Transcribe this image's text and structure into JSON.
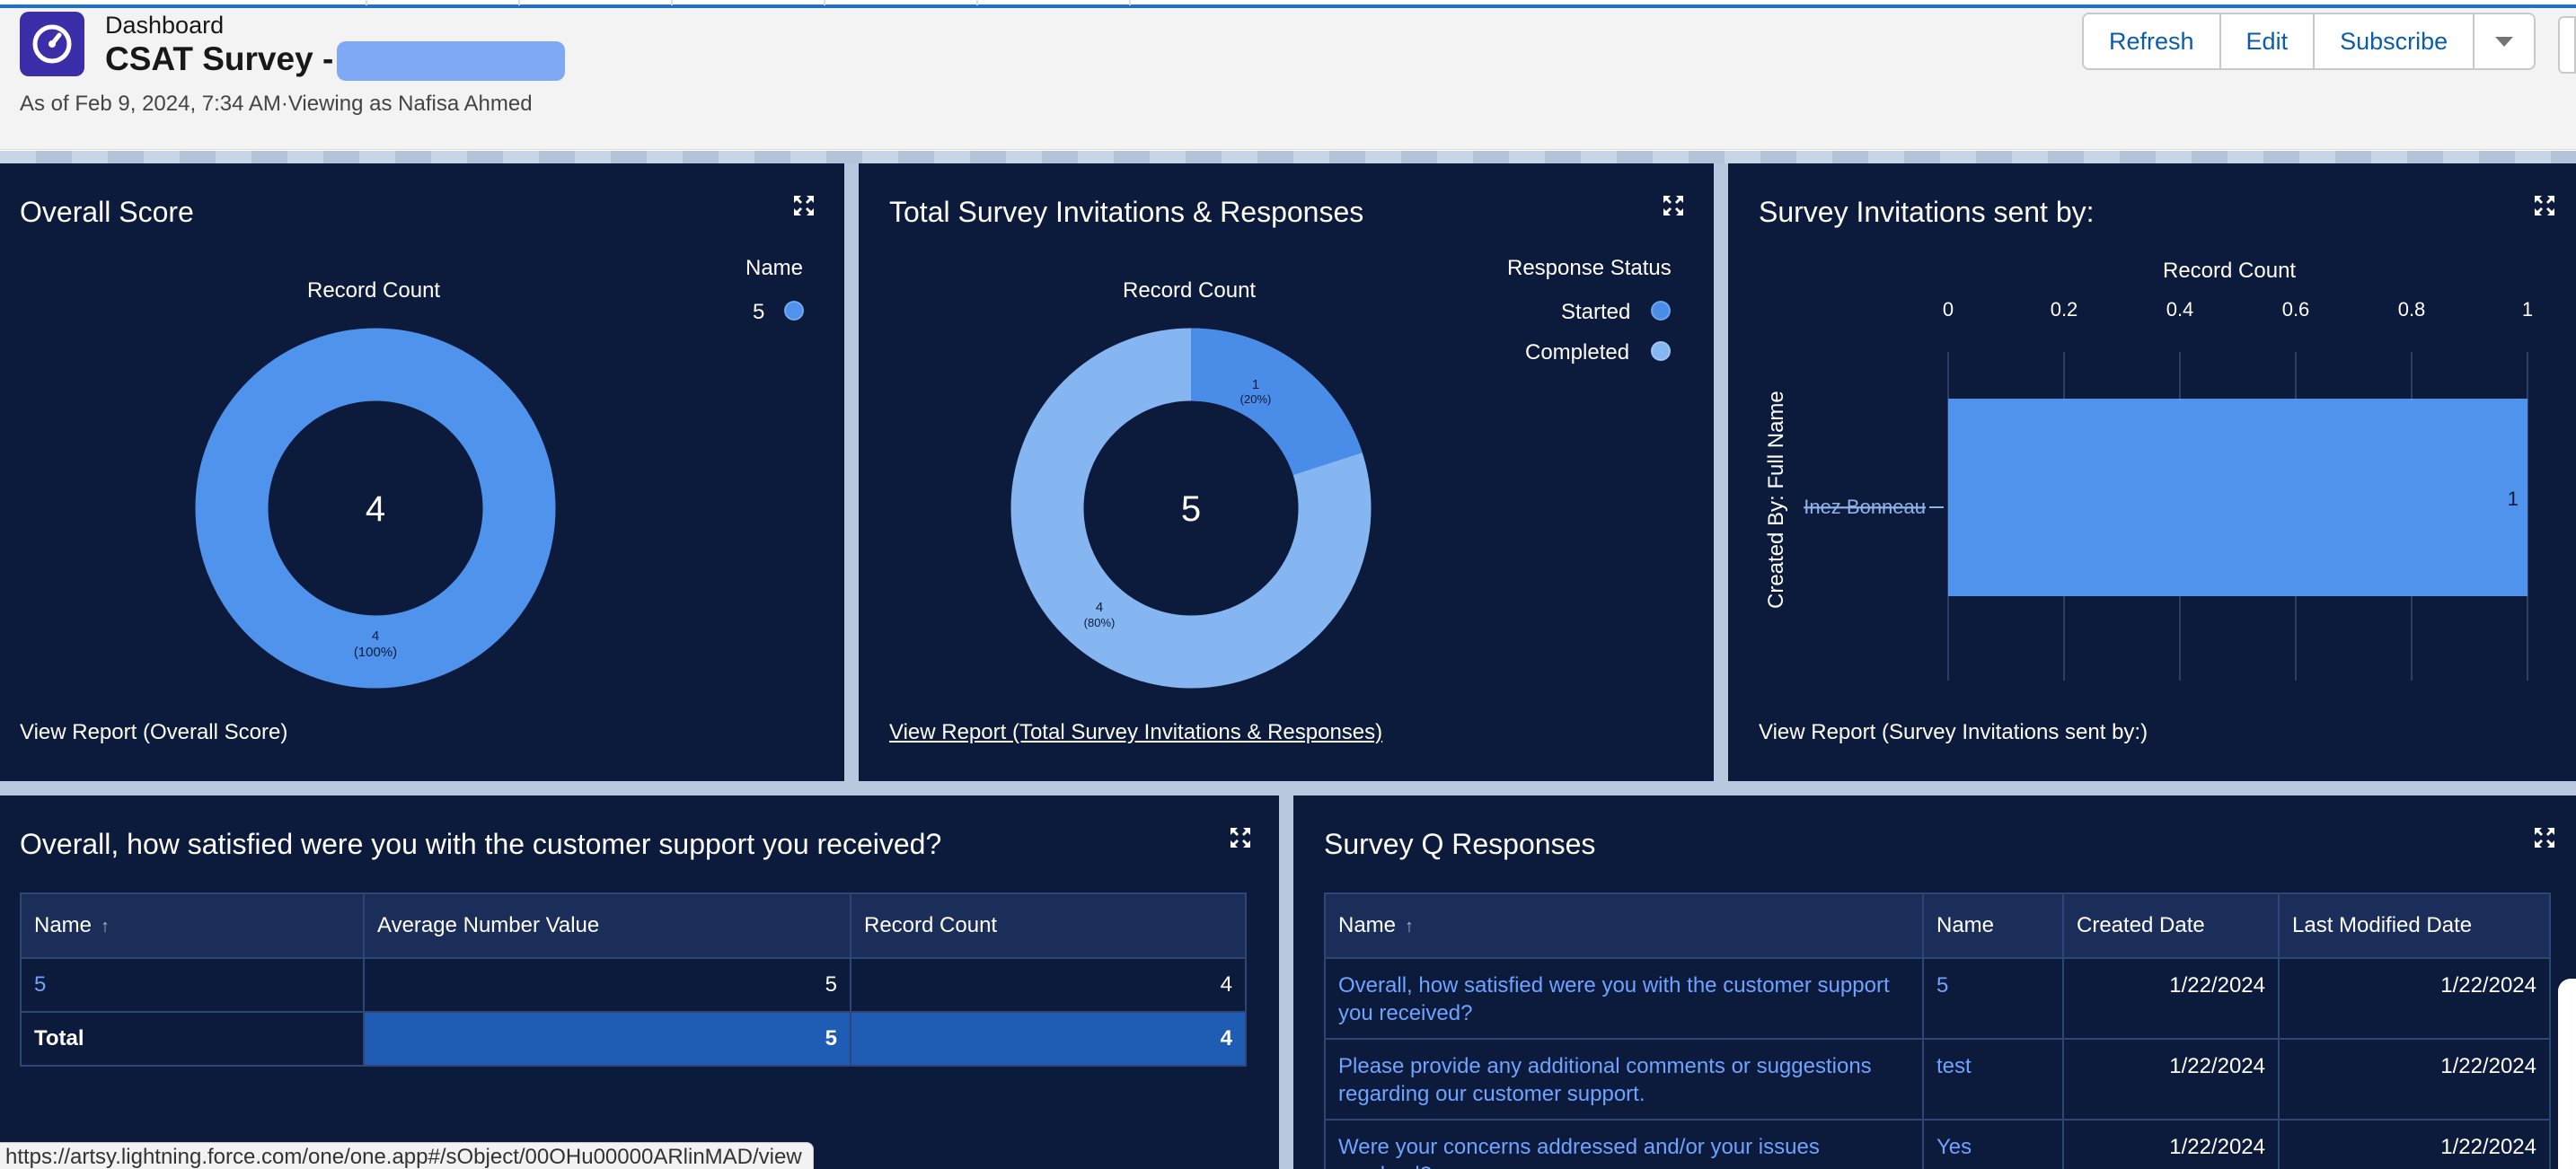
{
  "header": {
    "kicker": "Dashboard",
    "title": "CSAT Survey -",
    "subtitle": "As of Feb 9, 2024, 7:34 AM·Viewing as Nafisa Ahmed",
    "app_icon": "gauge-icon",
    "buttons": {
      "refresh": "Refresh",
      "edit": "Edit",
      "subscribe": "Subscribe"
    },
    "menu_icon": "chevron-down-icon"
  },
  "overall_score": {
    "title": "Overall Score",
    "chart_label": "Record Count",
    "center_value": "4",
    "legend_title": "Name",
    "legend_item": "5",
    "slice_label": "4",
    "slice_pct": "(100%)",
    "view_report": "View Report (Overall Score)"
  },
  "invitations": {
    "title": "Total Survey Invitations & Responses",
    "chart_label": "Record Count",
    "center_value": "5",
    "legend_title": "Response Status",
    "legend_started": "Started",
    "legend_completed": "Completed",
    "slice_started_value": "1",
    "slice_started_pct": "(20%)",
    "slice_completed_value": "4",
    "slice_completed_pct": "(80%)",
    "view_report": "View Report (Total Survey Invitations & Responses)"
  },
  "sent_by": {
    "title": "Survey Invitations sent by:",
    "x_label": "Record Count",
    "y_label": "Created By: Full Name",
    "ticks": [
      "0",
      "0.2",
      "0.4",
      "0.6",
      "0.8",
      "1"
    ],
    "bar_category": "Inez Bonneau",
    "bar_value_label": "1",
    "view_report": "View Report (Survey Invitations sent by:)"
  },
  "satisfaction": {
    "title": "Overall, how satisfied were you with the customer support you received?",
    "headers": [
      "Name",
      "Average Number Value",
      "Record Count"
    ],
    "row": {
      "name": "5",
      "avg": "5",
      "count": "4"
    },
    "total": {
      "label": "Total",
      "avg": "5",
      "count": "4"
    }
  },
  "responses": {
    "title": "Survey Q Responses",
    "headers": [
      "Name",
      "Name",
      "Created Date",
      "Last Modified Date"
    ],
    "rows": [
      {
        "question": "Overall, how satisfied were you with the customer support you received?",
        "answer": "5",
        "created": "1/22/2024",
        "modified": "1/22/2024"
      },
      {
        "question": "Please provide any additional comments or suggestions regarding our customer support.",
        "answer": "test",
        "created": "1/22/2024",
        "modified": "1/22/2024"
      },
      {
        "question": "Were your concerns addressed and/or your issues resolved?",
        "answer": "Yes",
        "created": "1/22/2024",
        "modified": "1/22/2024"
      }
    ]
  },
  "status_url": "https://artsy.lightning.force.com/one/one.app#/sObject/00OHu00000ARlinMAD/view",
  "chart_data": [
    {
      "type": "pie",
      "title": "Overall Score",
      "categories": [
        "5"
      ],
      "values": [
        4
      ],
      "legend_title": "Name",
      "center_total": 4,
      "donut": true,
      "colors": [
        "#4f93ec"
      ]
    },
    {
      "type": "pie",
      "title": "Total Survey Invitations & Responses",
      "categories": [
        "Started",
        "Completed"
      ],
      "values": [
        1,
        4
      ],
      "legend_title": "Response Status",
      "center_total": 5,
      "donut": true,
      "colors": [
        "#4a8de8",
        "#86b6f2"
      ]
    },
    {
      "type": "bar",
      "orientation": "horizontal",
      "title": "Survey Invitations sent by:",
      "categories": [
        "Inez Bonneau"
      ],
      "values": [
        1
      ],
      "xlabel": "Record Count",
      "ylabel": "Created By: Full Name",
      "xlim": [
        0,
        1
      ],
      "colors": [
        "#4f93ec"
      ]
    }
  ]
}
